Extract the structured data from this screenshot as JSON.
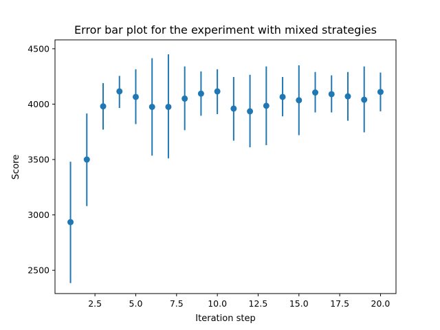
{
  "chart_data": {
    "type": "scatter",
    "title": "Error bar plot for the experiment with mixed strategies",
    "xlabel": "Iteration step",
    "ylabel": "Score",
    "xlim": [
      0.05,
      20.95
    ],
    "ylim": [
      2290,
      4580
    ],
    "x_ticks": [
      2.5,
      5.0,
      7.5,
      10.0,
      12.5,
      15.0,
      17.5,
      20.0
    ],
    "x_tick_labels": [
      "2.5",
      "5.0",
      "7.5",
      "10.0",
      "12.5",
      "15.0",
      "17.5",
      "20.0"
    ],
    "y_ticks": [
      2500,
      3000,
      3500,
      4000,
      4500
    ],
    "y_tick_labels": [
      "2500",
      "3000",
      "3500",
      "4000",
      "4500"
    ],
    "grid": false,
    "color": "#1f77b4",
    "series": [
      {
        "x": [
          1,
          2,
          3,
          4,
          5,
          6,
          7,
          8,
          9,
          10,
          11,
          12,
          13,
          14,
          15,
          16,
          17,
          18,
          19,
          20
        ],
        "y": [
          2935,
          3500,
          3980,
          4115,
          4065,
          3975,
          3975,
          4050,
          4095,
          4115,
          3960,
          3935,
          3985,
          4065,
          4035,
          4105,
          4090,
          4070,
          4040,
          4110
        ],
        "y_err_low": [
          2385,
          3080,
          3770,
          3965,
          3820,
          3535,
          3510,
          3765,
          3895,
          3910,
          3670,
          3610,
          3630,
          3890,
          3720,
          3925,
          3925,
          3850,
          3745,
          3935
        ],
        "y_err_high": [
          3480,
          3915,
          4190,
          4255,
          4315,
          4415,
          4450,
          4340,
          4295,
          4315,
          4245,
          4265,
          4340,
          4245,
          4350,
          4290,
          4260,
          4290,
          4340,
          4285
        ]
      }
    ]
  }
}
